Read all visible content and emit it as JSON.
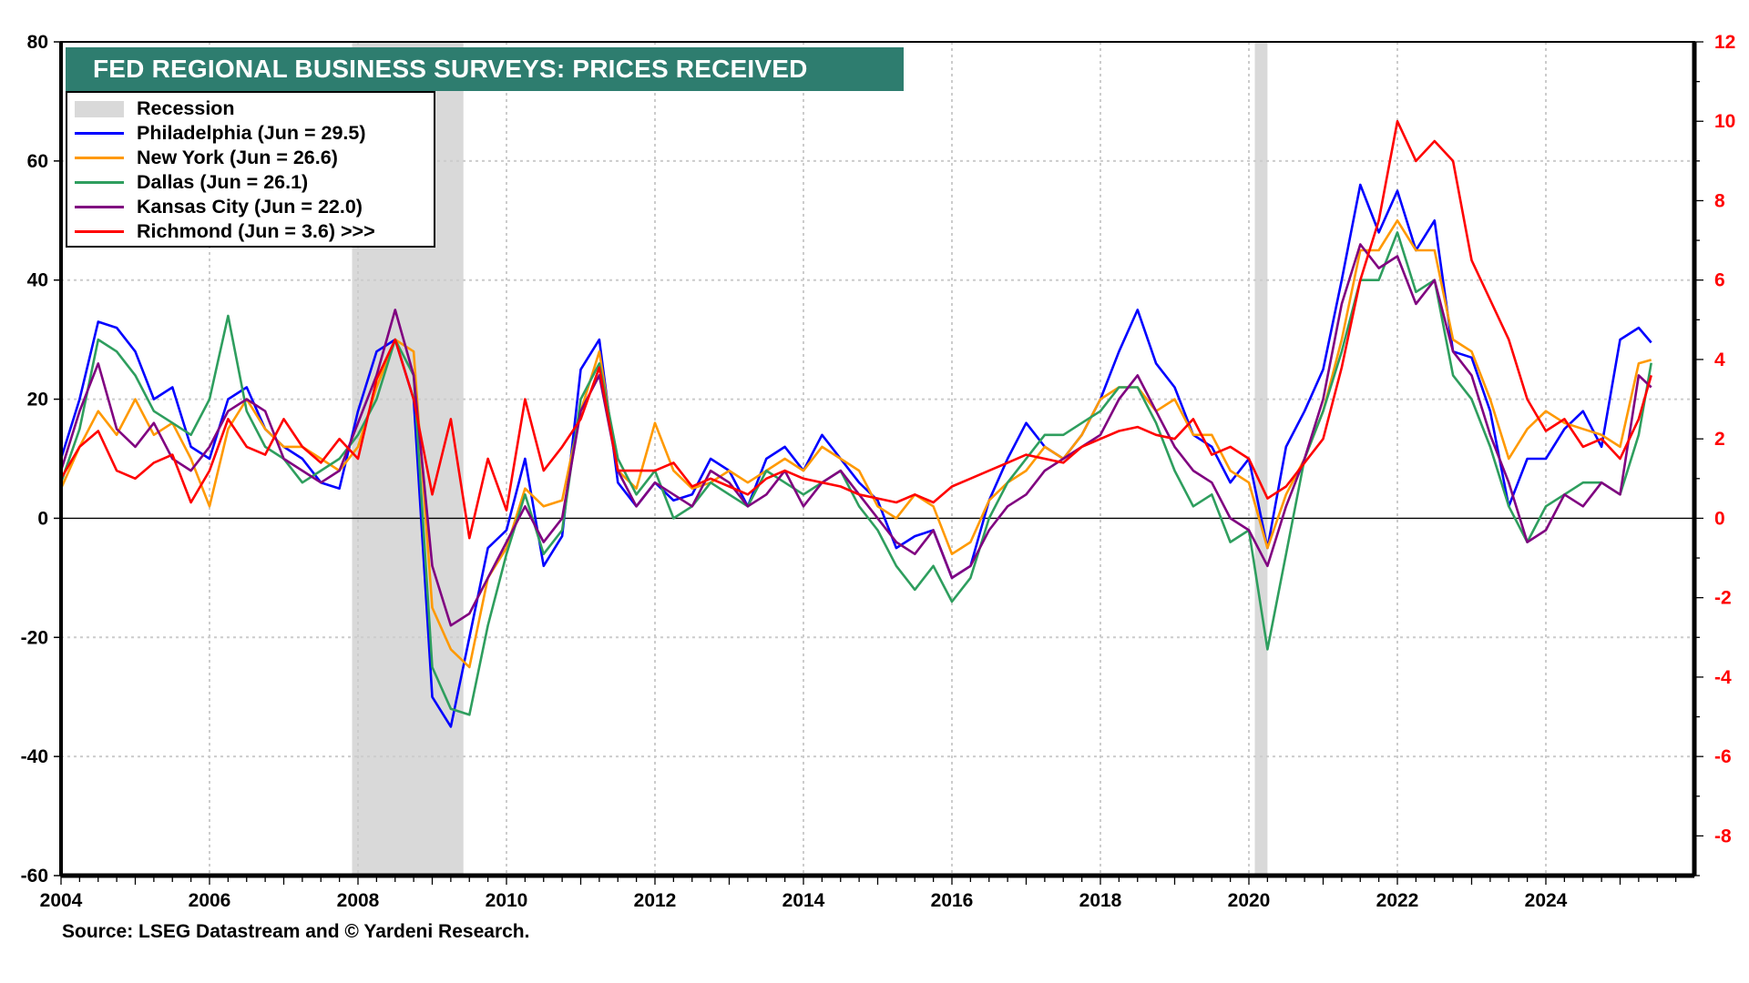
{
  "chart_data": {
    "type": "line",
    "title": "FED REGIONAL BUSINESS SURVEYS: PRICES RECEIVED",
    "source": "Source: LSEG Datastream and © Yardeni Research.",
    "xlim": [
      2004,
      2026
    ],
    "x_ticks": [
      "2004",
      "2006",
      "2008",
      "2010",
      "2012",
      "2014",
      "2016",
      "2018",
      "2020",
      "2022",
      "2024"
    ],
    "x_tick_values": [
      2004,
      2006,
      2008,
      2010,
      2012,
      2014,
      2016,
      2018,
      2020,
      2022,
      2024
    ],
    "ylim_left": [
      -60,
      80
    ],
    "y_ticks_left": [
      80,
      60,
      40,
      20,
      0,
      -20,
      -40,
      -60
    ],
    "ylim_right": [
      -9,
      12
    ],
    "y_ticks_right": [
      12,
      10,
      8,
      6,
      4,
      2,
      0,
      -2,
      -4,
      -6,
      -8
    ],
    "grid": true,
    "legend_position": "top-left",
    "recessions": [
      {
        "label": "Recession",
        "start": 2007.92,
        "end": 2009.42
      },
      {
        "label": "Recession",
        "start": 2020.08,
        "end": 2020.25
      }
    ],
    "legend": [
      {
        "label": "Recession",
        "color": "#d9d9d9",
        "kind": "band"
      },
      {
        "label": "Philadelphia (Jun = 29.5)",
        "color": "#0000ff"
      },
      {
        "label": "New York (Jun = 26.6)",
        "color": "#ff9900"
      },
      {
        "label": "Dallas (Jun = 26.1)",
        "color": "#2e9e5e"
      },
      {
        "label": "Kansas City (Jun = 22.0)",
        "color": "#800080"
      },
      {
        "label": "Richmond (Jun = 3.6) >>>",
        "color": "#ff0000"
      }
    ],
    "x": [
      2004.0,
      2004.25,
      2004.5,
      2004.75,
      2005.0,
      2005.25,
      2005.5,
      2005.75,
      2006.0,
      2006.25,
      2006.5,
      2006.75,
      2007.0,
      2007.25,
      2007.5,
      2007.75,
      2008.0,
      2008.25,
      2008.5,
      2008.75,
      2009.0,
      2009.25,
      2009.5,
      2009.75,
      2010.0,
      2010.25,
      2010.5,
      2010.75,
      2011.0,
      2011.25,
      2011.5,
      2011.75,
      2012.0,
      2012.25,
      2012.5,
      2012.75,
      2013.0,
      2013.25,
      2013.5,
      2013.75,
      2014.0,
      2014.25,
      2014.5,
      2014.75,
      2015.0,
      2015.25,
      2015.5,
      2015.75,
      2016.0,
      2016.25,
      2016.5,
      2016.75,
      2017.0,
      2017.25,
      2017.5,
      2017.75,
      2018.0,
      2018.25,
      2018.5,
      2018.75,
      2019.0,
      2019.25,
      2019.5,
      2019.75,
      2020.0,
      2020.25,
      2020.5,
      2020.75,
      2021.0,
      2021.25,
      2021.5,
      2021.75,
      2022.0,
      2022.25,
      2022.5,
      2022.75,
      2023.0,
      2023.25,
      2023.5,
      2023.75,
      2024.0,
      2024.25,
      2024.5,
      2024.75,
      2025.0,
      2025.25,
      2025.42
    ],
    "series": [
      {
        "name": "Philadelphia",
        "axis": "left",
        "color": "#0000ff",
        "values": [
          10,
          20,
          33,
          32,
          28,
          20,
          22,
          12,
          10,
          20,
          22,
          15,
          12,
          10,
          6,
          5,
          18,
          28,
          30,
          20,
          -30,
          -35,
          -20,
          -5,
          -2,
          10,
          -8,
          -3,
          25,
          30,
          6,
          2,
          6,
          3,
          4,
          10,
          8,
          2,
          10,
          12,
          8,
          14,
          10,
          6,
          3,
          -5,
          -3,
          -2,
          -10,
          -8,
          3,
          10,
          16,
          12,
          10,
          14,
          20,
          28,
          35,
          26,
          22,
          14,
          12,
          6,
          10,
          -5,
          12,
          18,
          25,
          40,
          56,
          48,
          55,
          45,
          50,
          28,
          27,
          18,
          2,
          10,
          10,
          15,
          18,
          12,
          30,
          32,
          29.5
        ]
      },
      {
        "name": "New York",
        "axis": "left",
        "color": "#ff9900",
        "values": [
          5,
          12,
          18,
          14,
          20,
          14,
          16,
          10,
          2,
          15,
          20,
          15,
          12,
          12,
          10,
          8,
          12,
          22,
          30,
          28,
          -15,
          -22,
          -25,
          -10,
          -5,
          5,
          2,
          3,
          18,
          28,
          8,
          5,
          16,
          8,
          5,
          6,
          8,
          6,
          8,
          10,
          8,
          12,
          10,
          8,
          2,
          0,
          4,
          2,
          -6,
          -4,
          3,
          6,
          8,
          12,
          10,
          14,
          20,
          22,
          22,
          18,
          20,
          14,
          14,
          8,
          6,
          -5,
          4,
          10,
          18,
          30,
          45,
          45,
          50,
          45,
          45,
          30,
          28,
          20,
          10,
          15,
          18,
          16,
          15,
          14,
          12,
          26,
          26.6
        ]
      },
      {
        "name": "Dallas",
        "axis": "left",
        "color": "#2e9e5e",
        "values": [
          6,
          15,
          30,
          28,
          24,
          18,
          16,
          14,
          20,
          34,
          18,
          12,
          10,
          6,
          8,
          10,
          14,
          20,
          30,
          24,
          -25,
          -32,
          -33,
          -18,
          -6,
          4,
          -6,
          -2,
          20,
          26,
          10,
          4,
          8,
          0,
          2,
          6,
          4,
          2,
          8,
          6,
          4,
          6,
          8,
          2,
          -2,
          -8,
          -12,
          -8,
          -14,
          -10,
          0,
          6,
          10,
          14,
          14,
          16,
          18,
          22,
          22,
          16,
          8,
          2,
          4,
          -4,
          -2,
          -22,
          -6,
          10,
          18,
          28,
          40,
          40,
          48,
          38,
          40,
          24,
          20,
          12,
          2,
          -4,
          2,
          4,
          6,
          6,
          4,
          14,
          26.1
        ]
      },
      {
        "name": "Kansas City",
        "axis": "left",
        "color": "#800080",
        "values": [
          8,
          18,
          26,
          15,
          12,
          16,
          10,
          8,
          12,
          18,
          20,
          18,
          10,
          8,
          6,
          8,
          16,
          24,
          35,
          24,
          -8,
          -18,
          -16,
          -10,
          -4,
          2,
          -4,
          0,
          18,
          24,
          8,
          2,
          6,
          4,
          2,
          8,
          6,
          2,
          4,
          8,
          2,
          6,
          8,
          4,
          0,
          -4,
          -6,
          -2,
          -10,
          -8,
          -2,
          2,
          4,
          8,
          10,
          12,
          14,
          20,
          24,
          18,
          12,
          8,
          6,
          0,
          -2,
          -8,
          2,
          10,
          20,
          36,
          46,
          42,
          44,
          36,
          40,
          28,
          24,
          14,
          6,
          -4,
          -2,
          4,
          2,
          6,
          4,
          24,
          22.0
        ]
      },
      {
        "name": "Richmond",
        "axis": "right",
        "color": "#ff0000",
        "values": [
          1.0,
          1.8,
          2.2,
          1.2,
          1.0,
          1.4,
          1.6,
          0.4,
          1.2,
          2.5,
          1.8,
          1.6,
          2.5,
          1.8,
          1.4,
          2.0,
          1.5,
          3.5,
          4.5,
          3.0,
          0.6,
          2.5,
          -0.5,
          1.5,
          0.2,
          3.0,
          1.2,
          1.8,
          2.5,
          3.8,
          1.2,
          1.2,
          1.2,
          1.4,
          0.8,
          1.0,
          0.8,
          0.6,
          1.0,
          1.2,
          1.0,
          0.9,
          0.8,
          0.6,
          0.5,
          0.4,
          0.6,
          0.4,
          0.8,
          1.0,
          1.2,
          1.4,
          1.6,
          1.5,
          1.4,
          1.8,
          2.0,
          2.2,
          2.3,
          2.1,
          2.0,
          2.5,
          1.6,
          1.8,
          1.5,
          0.5,
          0.8,
          1.4,
          2.0,
          3.8,
          6.0,
          7.5,
          10.0,
          9.0,
          9.5,
          9.0,
          6.5,
          5.5,
          4.5,
          3.0,
          2.2,
          2.5,
          1.8,
          2.0,
          1.5,
          2.5,
          3.6
        ]
      }
    ]
  }
}
